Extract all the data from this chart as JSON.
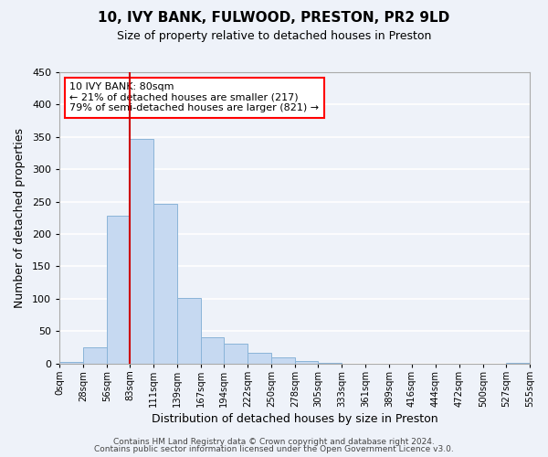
{
  "title": "10, IVY BANK, FULWOOD, PRESTON, PR2 9LD",
  "subtitle": "Size of property relative to detached houses in Preston",
  "xlabel": "Distribution of detached houses by size in Preston",
  "ylabel": "Number of detached properties",
  "bar_color": "#c6d9f1",
  "bar_edgecolor": "#8ab4d8",
  "background_color": "#eef2f9",
  "grid_color": "#ffffff",
  "annotation_box_text": "10 IVY BANK: 80sqm\n← 21% of detached houses are smaller (217)\n79% of semi-detached houses are larger (821) →",
  "vline_x": 83,
  "vline_color": "#cc0000",
  "bin_edges": [
    0,
    28,
    56,
    83,
    111,
    139,
    167,
    194,
    222,
    250,
    278,
    305,
    333,
    361,
    389,
    416,
    444,
    472,
    500,
    527,
    555
  ],
  "bin_counts": [
    3,
    25,
    228,
    347,
    247,
    101,
    41,
    30,
    16,
    10,
    4,
    1,
    0,
    0,
    0,
    0,
    0,
    0,
    0,
    1
  ],
  "tick_labels": [
    "0sqm",
    "28sqm",
    "56sqm",
    "83sqm",
    "111sqm",
    "139sqm",
    "167sqm",
    "194sqm",
    "222sqm",
    "250sqm",
    "278sqm",
    "305sqm",
    "333sqm",
    "361sqm",
    "389sqm",
    "416sqm",
    "444sqm",
    "472sqm",
    "500sqm",
    "527sqm",
    "555sqm"
  ],
  "ylim": [
    0,
    450
  ],
  "yticks": [
    0,
    50,
    100,
    150,
    200,
    250,
    300,
    350,
    400,
    450
  ],
  "footer_line1": "Contains HM Land Registry data © Crown copyright and database right 2024.",
  "footer_line2": "Contains public sector information licensed under the Open Government Licence v3.0."
}
